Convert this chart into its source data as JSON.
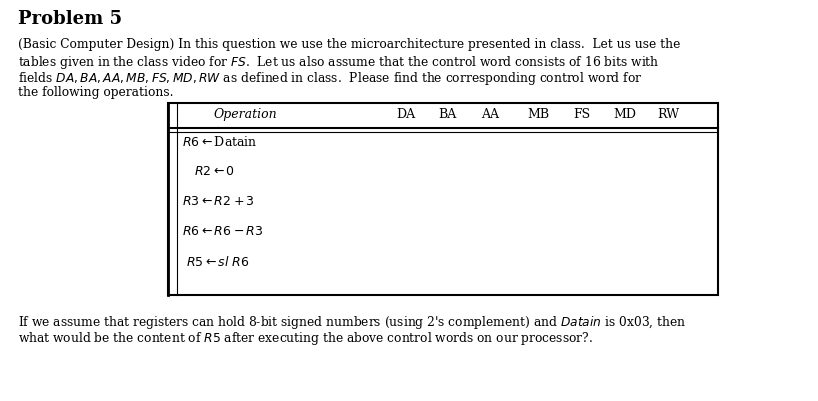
{
  "title": "Problem 5",
  "bg_color": "#ffffff",
  "text_color": "#000000",
  "para1_lines": [
    "(Basic Computer Design) In this question we use the microarchitecture presented in class.  Let us use the",
    "tables given in the class video for $\\mathit{FS}$.  Let us also assume that the control word consists of 16 bits with",
    "fields $\\mathit{DA}, \\mathit{BA}, \\mathit{AA}, \\mathit{MB}, \\mathit{FS}, \\mathit{MD}, \\mathit{RW}$ as defined in class.  Please find the corresponding control word for",
    "the following operations."
  ],
  "table_header": [
    "Operation",
    "DA",
    "BA",
    "AA",
    "MB",
    "FS",
    "MD",
    "RW"
  ],
  "table_rows": [
    "$R6 \\leftarrow$Datain",
    "$R2 \\leftarrow 0$",
    "$R3 \\leftarrow R2 + 3$",
    "$R6 \\leftarrow R6 - R3$",
    "$R5 \\leftarrow sl\\; R6$"
  ],
  "para2_lines": [
    "If we assume that registers can hold 8-bit signed numbers (using 2's complement) and $\\mathit{Datain}$ is 0x03, then",
    "what would be the content of $R5$ after executing the above control words on our processor?."
  ],
  "fig_width": 8.18,
  "fig_height": 4.01,
  "dpi": 100
}
